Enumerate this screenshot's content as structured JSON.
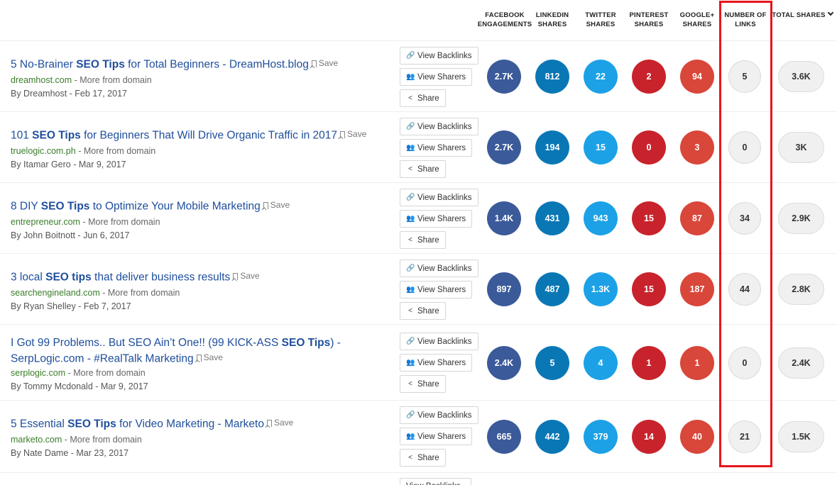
{
  "columns": [
    {
      "id": "facebook",
      "line1": "FACEBOOK",
      "line2": "ENGAGEMENTS"
    },
    {
      "id": "linkedin",
      "line1": "LINKEDIN",
      "line2": "SHARES"
    },
    {
      "id": "twitter",
      "line1": "TWITTER",
      "line2": "SHARES"
    },
    {
      "id": "pinterest",
      "line1": "PINTEREST",
      "line2": "SHARES"
    },
    {
      "id": "googleplus",
      "line1": "GOOGLE+",
      "line2": "SHARES"
    },
    {
      "id": "links",
      "line1": "NUMBER OF",
      "line2": "LINKS"
    },
    {
      "id": "total",
      "line1": "TOTAL SHARES",
      "line2": ""
    }
  ],
  "buttons": {
    "view_backlinks": "View Backlinks",
    "view_sharers": "View Sharers",
    "share": "Share",
    "save": "Save",
    "more_from_domain": "More from domain"
  },
  "colors": {
    "facebook": "#3b5a9a",
    "linkedin": "#0a77b5",
    "twitter": "#1da1e6",
    "pinterest": "#c8232c",
    "googleplus": "#d9463a",
    "title_link": "#1e4e9c",
    "domain_link": "#3a7d2a",
    "highlight_box": "#e8151b"
  },
  "icons": {
    "view_backlinks": "link-icon",
    "view_sharers": "users-icon",
    "share": "share-icon",
    "save": "bookmark-icon",
    "sort": "chevron-down-icon"
  },
  "articles": [
    {
      "title_pre": "5 No-Brainer ",
      "title_bold": "SEO Tips",
      "title_post": " for Total Beginners - DreamHost.blog",
      "domain": "dreamhost.com",
      "byline": "By Dreamhost - Feb 17, 2017",
      "facebook": "2.7K",
      "linkedin": "812",
      "twitter": "22",
      "pinterest": "2",
      "googleplus": "94",
      "links": "5",
      "total": "3.6K"
    },
    {
      "title_pre": "101 ",
      "title_bold": "SEO Tips",
      "title_post": " for Beginners That Will Drive Organic Traffic in 2017",
      "domain": "truelogic.com.ph",
      "byline": "By Itamar Gero - Mar 9, 2017",
      "facebook": "2.7K",
      "linkedin": "194",
      "twitter": "15",
      "pinterest": "0",
      "googleplus": "3",
      "links": "0",
      "total": "3K"
    },
    {
      "title_pre": "8 DIY ",
      "title_bold": "SEO Tips",
      "title_post": " to Optimize Your Mobile Marketing",
      "domain": "entrepreneur.com",
      "byline": "By John Boitnott - Jun 6, 2017",
      "facebook": "1.4K",
      "linkedin": "431",
      "twitter": "943",
      "pinterest": "15",
      "googleplus": "87",
      "links": "34",
      "total": "2.9K"
    },
    {
      "title_pre": "3 local ",
      "title_bold": "SEO tips",
      "title_post": " that deliver business results",
      "domain": "searchengineland.com",
      "byline": "By Ryan Shelley - Feb 7, 2017",
      "facebook": "897",
      "linkedin": "487",
      "twitter": "1.3K",
      "pinterest": "15",
      "googleplus": "187",
      "links": "44",
      "total": "2.8K"
    },
    {
      "title_pre": "I Got 99 Problems.. But SEO Ain’t One!! (99 KICK-ASS ",
      "title_bold": "SEO Tips",
      "title_post": ") - SerpLogic.com - #RealTalk Marketing",
      "domain": "serplogic.com",
      "byline": "By Tommy Mcdonald - Mar 9, 2017",
      "facebook": "2.4K",
      "linkedin": "5",
      "twitter": "4",
      "pinterest": "1",
      "googleplus": "1",
      "links": "0",
      "total": "2.4K"
    },
    {
      "title_pre": "5 Essential ",
      "title_bold": "SEO Tips",
      "title_post": " for Video Marketing - Marketo",
      "domain": "marketo.com",
      "byline": "By Nate Dame - Mar 23, 2017",
      "facebook": "665",
      "linkedin": "442",
      "twitter": "379",
      "pinterest": "14",
      "googleplus": "40",
      "links": "21",
      "total": "1.5K"
    }
  ]
}
